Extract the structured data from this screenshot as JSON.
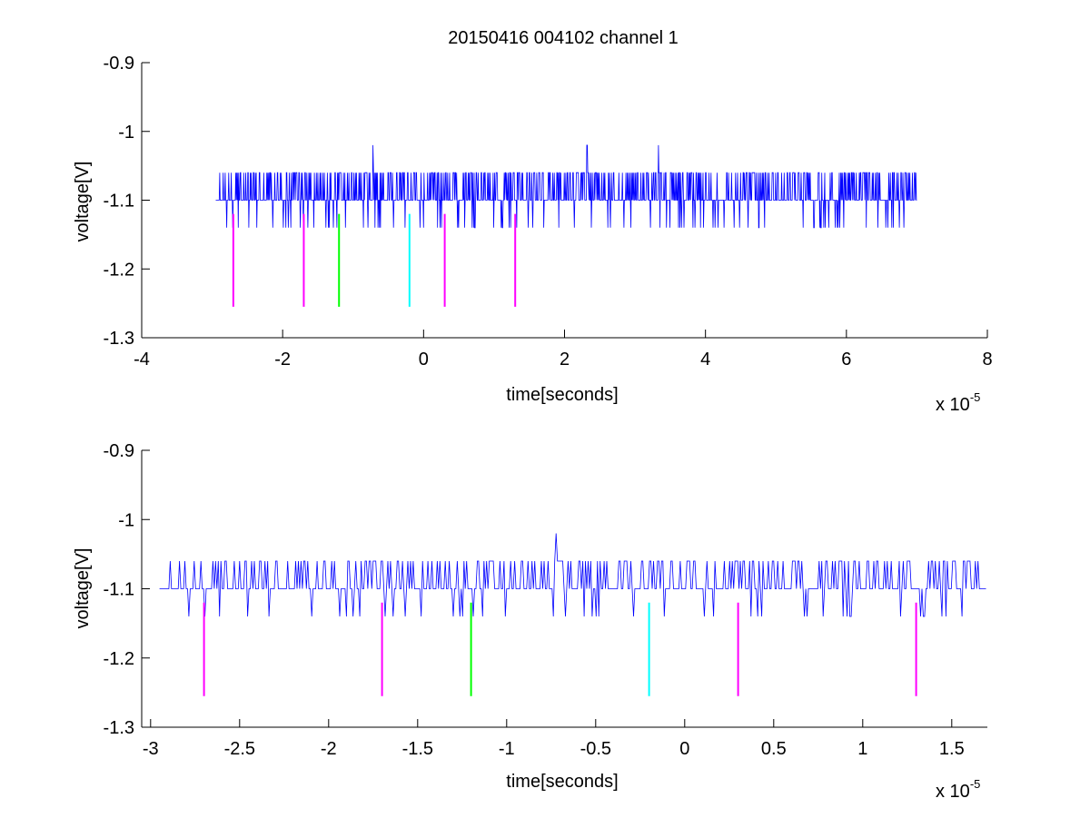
{
  "figure": {
    "title": "20150416 004102 channel 1"
  },
  "colors": {
    "signal": "#0000ff",
    "magenta": "#ff00ff",
    "green": "#00ff00",
    "cyan": "#00ffff",
    "axis": "#000000"
  },
  "chart_data": [
    {
      "type": "line",
      "title": "20150416 004102 channel 1",
      "xlabel": "time[seconds]",
      "ylabel": "voltage[V]",
      "x_exponent_label": "x 10",
      "x_exponent": "-5",
      "xlim": [
        -4,
        8
      ],
      "ylim": [
        -1.3,
        -0.9
      ],
      "x_ticks": [
        -4,
        -2,
        0,
        2,
        4,
        6,
        8
      ],
      "x_tick_labels": [
        "-4",
        "-2",
        "0",
        "2",
        "4",
        "6",
        "8"
      ],
      "y_ticks": [
        -1.3,
        -1.2,
        -1.1,
        -1.0,
        -0.9
      ],
      "y_tick_labels": [
        "-1.3",
        "-1.2",
        "-1.1",
        "-1",
        "-0.9"
      ],
      "grid": false,
      "signal": {
        "x_start": -2.95,
        "x_end": 7.0,
        "baseline": -1.1,
        "high": -1.06,
        "low": -1.14,
        "peaks": [
          {
            "x": -0.72,
            "y": -1.02
          },
          {
            "x": 2.32,
            "y": -1.02
          },
          {
            "x": 3.33,
            "y": -1.02
          }
        ]
      },
      "markers": [
        {
          "x": -2.7,
          "color": "magenta",
          "y_top": -1.12,
          "y_bottom": -1.255
        },
        {
          "x": -1.7,
          "color": "magenta",
          "y_top": -1.12,
          "y_bottom": -1.255
        },
        {
          "x": -1.2,
          "color": "green",
          "y_top": -1.12,
          "y_bottom": -1.255
        },
        {
          "x": -0.2,
          "color": "cyan",
          "y_top": -1.12,
          "y_bottom": -1.255
        },
        {
          "x": 0.3,
          "color": "magenta",
          "y_top": -1.12,
          "y_bottom": -1.255
        },
        {
          "x": 1.3,
          "color": "magenta",
          "y_top": -1.12,
          "y_bottom": -1.255
        }
      ]
    },
    {
      "type": "line",
      "title": "",
      "xlabel": "time[seconds]",
      "ylabel": "voltage[V]",
      "x_exponent_label": "x 10",
      "x_exponent": "-5",
      "xlim": [
        -3.05,
        1.7
      ],
      "ylim": [
        -1.3,
        -0.9
      ],
      "x_ticks": [
        -3,
        -2.5,
        -2,
        -1.5,
        -1,
        -0.5,
        0,
        0.5,
        1,
        1.5
      ],
      "x_tick_labels": [
        "-3",
        "-2.5",
        "-2",
        "-1.5",
        "-1",
        "-0.5",
        "0",
        "0.5",
        "1",
        "1.5"
      ],
      "y_ticks": [
        -1.3,
        -1.2,
        -1.1,
        -1.0,
        -0.9
      ],
      "y_tick_labels": [
        "-1.3",
        "-1.2",
        "-1.1",
        "-1",
        "-0.9"
      ],
      "grid": false,
      "signal": {
        "x_start": -2.95,
        "x_end": 1.7,
        "baseline": -1.1,
        "high": -1.06,
        "low": -1.14,
        "peaks": [
          {
            "x": -0.72,
            "y": -1.02
          }
        ]
      },
      "markers": [
        {
          "x": -2.7,
          "color": "magenta",
          "y_top": -1.12,
          "y_bottom": -1.255
        },
        {
          "x": -1.7,
          "color": "magenta",
          "y_top": -1.12,
          "y_bottom": -1.255
        },
        {
          "x": -1.2,
          "color": "green",
          "y_top": -1.12,
          "y_bottom": -1.255
        },
        {
          "x": -0.2,
          "color": "cyan",
          "y_top": -1.12,
          "y_bottom": -1.255
        },
        {
          "x": 0.3,
          "color": "magenta",
          "y_top": -1.12,
          "y_bottom": -1.255
        },
        {
          "x": 1.3,
          "color": "magenta",
          "y_top": -1.12,
          "y_bottom": -1.255
        }
      ]
    }
  ]
}
